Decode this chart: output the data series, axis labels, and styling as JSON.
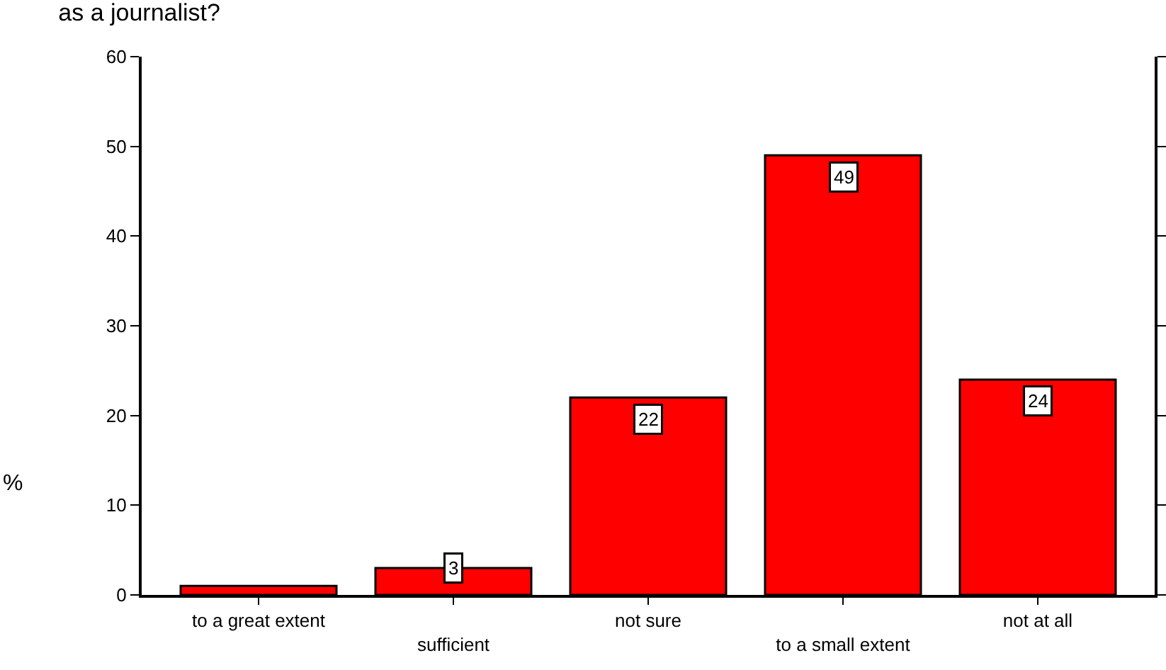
{
  "chart_data": {
    "type": "bar",
    "title": "as a journalist?",
    "ylabel": "%",
    "categories": [
      "to a great extent",
      "sufficient",
      "not sure",
      "to a small extent",
      "not at all"
    ],
    "values": [
      1,
      3,
      22,
      49,
      24
    ],
    "value_labels": [
      null,
      "3",
      "22",
      "49",
      "24"
    ],
    "color": "#ff0000",
    "ylim": [
      0,
      60
    ],
    "yticks": [
      0,
      10,
      20,
      30,
      40,
      50,
      60
    ],
    "grid": false,
    "legend": false
  }
}
